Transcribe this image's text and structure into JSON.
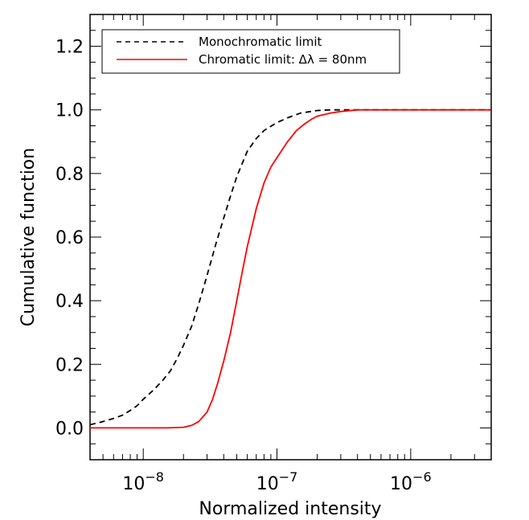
{
  "chart_data": {
    "type": "line",
    "xlabel": "Normalized intensity",
    "ylabel": "Cumulative function",
    "xscale": "log",
    "xlim": [
      4e-09,
      4e-06
    ],
    "ylim": [
      -0.1,
      1.3
    ],
    "x_ticks": [
      {
        "value": 1e-08,
        "label_base": "10",
        "label_exp": "−8"
      },
      {
        "value": 1e-07,
        "label_base": "10",
        "label_exp": "−7"
      },
      {
        "value": 1e-06,
        "label_base": "10",
        "label_exp": "−6"
      }
    ],
    "y_ticks": [
      {
        "value": 0.0,
        "label": "0.0"
      },
      {
        "value": 0.2,
        "label": "0.2"
      },
      {
        "value": 0.4,
        "label": "0.4"
      },
      {
        "value": 0.6,
        "label": "0.6"
      },
      {
        "value": 0.8,
        "label": "0.8"
      },
      {
        "value": 1.0,
        "label": "1.0"
      },
      {
        "value": 1.2,
        "label": "1.2"
      }
    ],
    "grid": false,
    "legend_position": "top-left",
    "series": [
      {
        "name": "Monochromatic limit",
        "color": "#000000",
        "style": "dashed",
        "x": [
          4e-09,
          5e-09,
          6e-09,
          7e-09,
          8e-09,
          9e-09,
          1e-08,
          1.2e-08,
          1.4e-08,
          1.6e-08,
          1.8e-08,
          2e-08,
          2.3e-08,
          2.6e-08,
          3e-08,
          3.5e-08,
          4e-08,
          4.5e-08,
          5e-08,
          6e-08,
          7e-08,
          8e-08,
          1e-07,
          1.2e-07,
          1.5e-07,
          2e-07,
          2.5e-07,
          3e-07,
          4e-07,
          5e-07,
          1e-06,
          2e-06,
          4e-06
        ],
        "y": [
          0.01,
          0.02,
          0.03,
          0.04,
          0.055,
          0.07,
          0.09,
          0.12,
          0.15,
          0.18,
          0.22,
          0.26,
          0.32,
          0.39,
          0.48,
          0.58,
          0.66,
          0.73,
          0.79,
          0.87,
          0.91,
          0.935,
          0.96,
          0.975,
          0.99,
          0.998,
          1.0,
          1.0,
          1.0,
          1.0,
          1.0,
          1.0,
          1.0
        ]
      },
      {
        "name": "Chromatic limit: Δλ = 80nm",
        "color": "#ff0000",
        "style": "solid",
        "x": [
          4e-09,
          1e-08,
          1.5e-08,
          2e-08,
          2.3e-08,
          2.6e-08,
          3e-08,
          3.3e-08,
          3.6e-08,
          4e-08,
          4.5e-08,
          5e-08,
          5.5e-08,
          6e-08,
          7e-08,
          8e-08,
          9e-08,
          1e-07,
          1.2e-07,
          1.4e-07,
          1.6e-07,
          1.8e-07,
          2e-07,
          2.5e-07,
          3e-07,
          4e-07,
          5e-07,
          1e-06,
          4e-06
        ],
        "y": [
          0.0,
          0.0,
          0.0,
          0.002,
          0.008,
          0.02,
          0.05,
          0.09,
          0.14,
          0.21,
          0.3,
          0.4,
          0.49,
          0.57,
          0.69,
          0.77,
          0.82,
          0.85,
          0.9,
          0.935,
          0.955,
          0.97,
          0.98,
          0.99,
          0.995,
          1.0,
          1.0,
          1.0,
          1.0
        ]
      }
    ]
  }
}
